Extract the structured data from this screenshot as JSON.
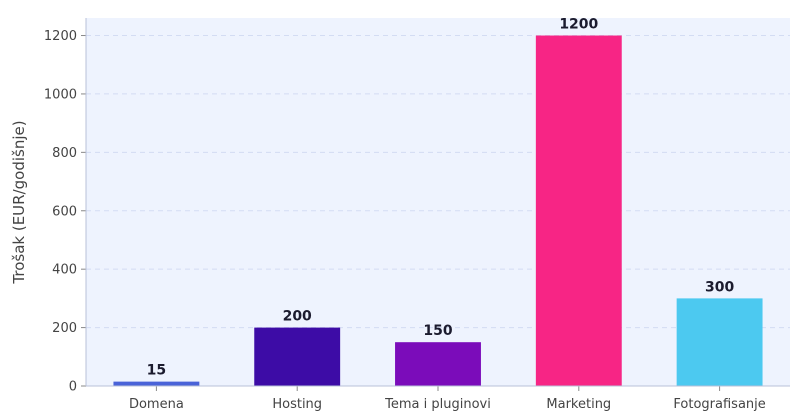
{
  "chart_data": {
    "type": "bar",
    "title": "",
    "xlabel": "",
    "ylabel": "Trošak (EUR/godišnje)",
    "categories": [
      "Domena",
      "Hosting",
      "Tema i pluginovi",
      "Marketing",
      "Fotografisanje"
    ],
    "values": [
      15,
      200,
      150,
      1200,
      300
    ],
    "colors": [
      "#4a63d8",
      "#3d0ca6",
      "#7b0cba",
      "#f72585",
      "#4cc9f0"
    ],
    "ylim": [
      0,
      1260
    ],
    "yticks": [
      0,
      200,
      400,
      600,
      800,
      1000,
      1200
    ],
    "grid": true,
    "legend": "none"
  }
}
